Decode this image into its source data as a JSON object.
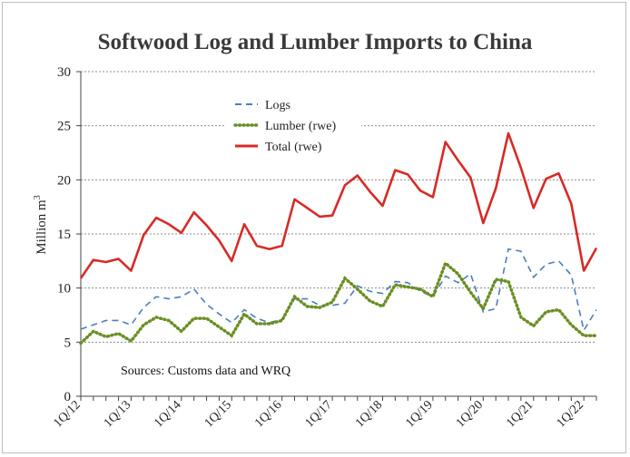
{
  "chart_data": {
    "type": "line",
    "title": "Softwood Log and Lumber Imports to China",
    "ylabel": "Million m",
    "ylabel_superscript": "3",
    "ylim": [
      0,
      30
    ],
    "yticks": [
      0,
      5,
      10,
      15,
      20,
      25,
      30
    ],
    "grid": "horizontal dashed",
    "legend_position": "top-left inside",
    "annotation": "Sources: Customs data and WRQ",
    "x": [
      "1Q/12",
      "2Q/12",
      "3Q/12",
      "4Q/12",
      "1Q/13",
      "2Q/13",
      "3Q/13",
      "4Q/13",
      "1Q/14",
      "2Q/14",
      "3Q/14",
      "4Q/14",
      "1Q/15",
      "2Q/15",
      "3Q/15",
      "4Q/15",
      "1Q/16",
      "2Q/16",
      "3Q/16",
      "4Q/16",
      "1Q/17",
      "2Q/17",
      "3Q/17",
      "4Q/17",
      "1Q/18",
      "2Q/18",
      "3Q/18",
      "4Q/18",
      "1Q/19",
      "2Q/19",
      "3Q/19",
      "4Q/19",
      "1Q/20",
      "2Q/20",
      "3Q/20",
      "4Q/20",
      "1Q/21",
      "2Q/21",
      "3Q/21",
      "4Q/21",
      "1Q/22",
      "2Q/22"
    ],
    "xtick_labels": [
      "1Q/12",
      "1Q/13",
      "1Q/14",
      "1Q/15",
      "1Q/16",
      "1Q/17",
      "1Q/18",
      "1Q/19",
      "1Q/20",
      "1Q/21",
      "1Q/22"
    ],
    "series": [
      {
        "name": "Logs",
        "style": "dashed",
        "color": "#4a7ebb",
        "values": [
          6.2,
          6.6,
          7.0,
          7.0,
          6.6,
          8.2,
          9.2,
          9.0,
          9.2,
          9.9,
          8.5,
          7.6,
          6.8,
          8.0,
          7.2,
          6.8,
          7.1,
          9.0,
          9.0,
          8.4,
          8.4,
          8.6,
          10.2,
          9.7,
          9.5,
          10.6,
          10.5,
          9.7,
          9.2,
          11.1,
          10.5,
          11.3,
          7.8,
          8.1,
          13.6,
          13.4,
          11.0,
          12.2,
          12.5,
          11.2,
          6.1,
          8.0
        ]
      },
      {
        "name": "Lumber (rwe)",
        "style": "dotted",
        "color": "#6b8e23",
        "values": [
          4.9,
          6.0,
          5.5,
          5.8,
          5.1,
          6.6,
          7.3,
          7.0,
          6.0,
          7.2,
          7.2,
          6.4,
          5.6,
          7.6,
          6.7,
          6.7,
          7.0,
          9.2,
          8.3,
          8.2,
          8.7,
          10.9,
          9.9,
          8.8,
          8.3,
          10.3,
          10.1,
          9.9,
          9.2,
          12.3,
          11.3,
          9.6,
          8.1,
          10.8,
          10.6,
          7.3,
          6.5,
          7.8,
          8.0,
          6.6,
          5.6,
          5.6
        ]
      },
      {
        "name": "Total (rwe)",
        "style": "solid",
        "color": "#d62b26",
        "values": [
          10.9,
          12.6,
          12.4,
          12.7,
          11.6,
          14.9,
          16.5,
          15.9,
          15.1,
          17.0,
          15.8,
          14.4,
          12.5,
          15.9,
          13.9,
          13.6,
          13.9,
          18.2,
          17.4,
          16.6,
          16.7,
          19.5,
          20.4,
          18.9,
          17.6,
          20.9,
          20.5,
          19.0,
          18.4,
          23.5,
          21.8,
          20.2,
          16.0,
          19.2,
          24.3,
          21.1,
          17.4,
          20.1,
          20.6,
          17.8,
          11.6,
          13.7
        ]
      }
    ]
  }
}
